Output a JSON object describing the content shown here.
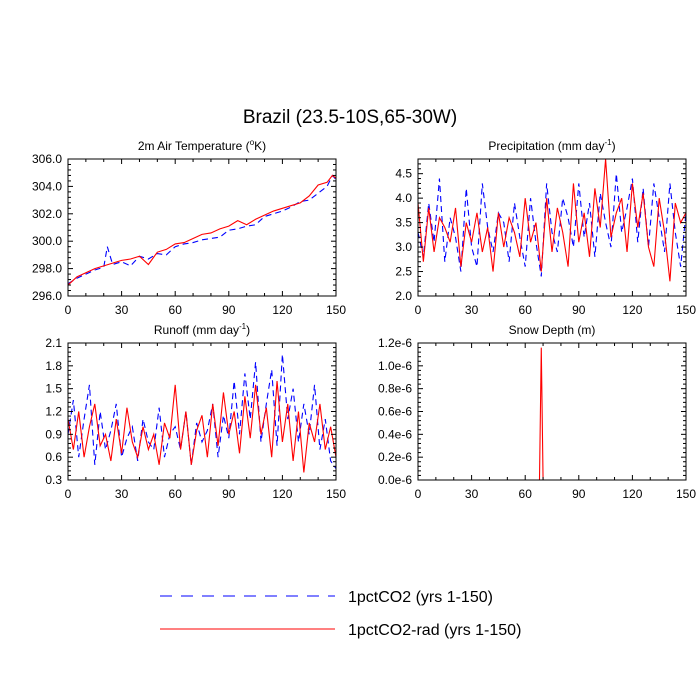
{
  "figure": {
    "title": "Brazil (23.5-10S,65-30W)"
  },
  "legend": {
    "position": "bottom-center",
    "entries": [
      {
        "label": "1pctCO2 (yrs 1-150)",
        "color": "#0000ff",
        "style": "dashed"
      },
      {
        "label": "1pctCO2-rad (yrs 1-150)",
        "color": "#ff0000",
        "style": "solid"
      }
    ]
  },
  "chart_data": [
    {
      "type": "line",
      "title": "2m Air Temperature (°K)",
      "title_main": "2m Air Temperature (",
      "title_sup": "o",
      "title_tail": "K)",
      "xlim": [
        0,
        150
      ],
      "ylim": [
        296,
        306
      ],
      "xticks": [
        "0",
        "30",
        "60",
        "90",
        "120",
        "150"
      ],
      "yticks": [
        "296.0",
        "298.0",
        "300.0",
        "302.0",
        "304.0",
        "306.0"
      ],
      "series": [
        {
          "name": "1pctCO2 (yrs 1-150)",
          "color": "#0000ff",
          "dash": "6,4",
          "x": [
            0,
            5,
            10,
            15,
            20,
            22,
            25,
            30,
            35,
            40,
            45,
            50,
            55,
            60,
            65,
            70,
            75,
            80,
            85,
            90,
            95,
            100,
            105,
            110,
            115,
            120,
            125,
            130,
            135,
            140,
            145,
            148,
            150
          ],
          "y": [
            296.9,
            297.3,
            297.6,
            297.9,
            298.1,
            299.6,
            298.3,
            298.5,
            298.2,
            298.9,
            298.7,
            299.1,
            299.0,
            299.6,
            299.8,
            299.9,
            300.1,
            300.2,
            300.3,
            300.8,
            300.9,
            301.1,
            301.2,
            301.8,
            302.0,
            302.2,
            302.5,
            302.9,
            303.0,
            303.5,
            304.0,
            304.8,
            304.5
          ]
        },
        {
          "name": "1pctCO2-rad (yrs 1-150)",
          "color": "#ff0000",
          "dash": "",
          "x": [
            0,
            5,
            10,
            15,
            20,
            25,
            30,
            35,
            40,
            45,
            50,
            55,
            60,
            65,
            70,
            75,
            80,
            85,
            90,
            95,
            100,
            105,
            110,
            115,
            120,
            125,
            130,
            135,
            140,
            145,
            148,
            150
          ],
          "y": [
            296.8,
            297.4,
            297.7,
            298.0,
            298.2,
            298.4,
            298.6,
            298.7,
            298.9,
            298.3,
            299.2,
            299.4,
            299.8,
            299.9,
            300.2,
            300.5,
            300.6,
            300.9,
            301.1,
            301.5,
            301.2,
            301.6,
            301.9,
            302.2,
            302.4,
            302.6,
            302.8,
            303.3,
            304.1,
            304.3,
            304.8,
            304.6
          ]
        }
      ]
    },
    {
      "type": "line",
      "title": "Precipitation (mm day-1)",
      "title_main": "Precipitation (mm day",
      "title_sup": "-1",
      "title_tail": ")",
      "xlim": [
        0,
        150
      ],
      "ylim": [
        2.0,
        4.8
      ],
      "xticks": [
        "0",
        "30",
        "60",
        "90",
        "120",
        "150"
      ],
      "yticks": [
        "2.0",
        "2.5",
        "3.0",
        "3.5",
        "4.0",
        "4.5"
      ],
      "series": [
        {
          "name": "1pctCO2 (yrs 1-150)",
          "color": "#0000ff",
          "dash": "6,4",
          "x": [
            0,
            3,
            6,
            9,
            12,
            15,
            18,
            21,
            24,
            27,
            30,
            33,
            36,
            39,
            42,
            45,
            48,
            51,
            54,
            57,
            60,
            63,
            66,
            69,
            72,
            75,
            78,
            81,
            84,
            87,
            90,
            93,
            96,
            99,
            102,
            105,
            108,
            111,
            114,
            117,
            120,
            123,
            126,
            129,
            132,
            135,
            138,
            141,
            144,
            147,
            150
          ],
          "y": [
            3.3,
            2.8,
            3.9,
            3.1,
            4.4,
            2.7,
            3.6,
            3.2,
            2.5,
            4.2,
            3.0,
            2.6,
            4.3,
            3.4,
            2.9,
            3.7,
            3.5,
            2.7,
            3.9,
            3.2,
            2.6,
            4.0,
            3.1,
            2.4,
            4.3,
            3.3,
            2.9,
            4.0,
            3.6,
            3.0,
            4.3,
            3.2,
            3.9,
            2.8,
            4.1,
            3.5,
            3.0,
            4.5,
            3.3,
            3.8,
            4.4,
            3.1,
            4.2,
            3.0,
            4.3,
            3.6,
            2.9,
            4.3,
            3.3,
            2.6,
            3.7
          ]
        },
        {
          "name": "1pctCO2-rad (yrs 1-150)",
          "color": "#ff0000",
          "dash": "",
          "x": [
            0,
            3,
            6,
            9,
            12,
            15,
            18,
            21,
            24,
            27,
            30,
            33,
            36,
            39,
            42,
            45,
            48,
            51,
            54,
            57,
            60,
            63,
            66,
            69,
            72,
            75,
            78,
            81,
            84,
            87,
            90,
            93,
            96,
            99,
            102,
            105,
            108,
            111,
            114,
            117,
            120,
            123,
            126,
            129,
            132,
            135,
            138,
            141,
            144,
            147,
            150
          ],
          "y": [
            3.9,
            2.7,
            3.8,
            2.9,
            3.6,
            3.4,
            3.1,
            3.8,
            2.6,
            3.5,
            3.1,
            3.7,
            2.9,
            3.4,
            2.5,
            3.7,
            3.0,
            3.6,
            3.3,
            2.8,
            4.0,
            3.1,
            3.5,
            2.5,
            4.0,
            2.9,
            3.8,
            3.3,
            2.6,
            4.3,
            3.1,
            3.7,
            2.8,
            4.2,
            3.4,
            4.8,
            3.2,
            3.7,
            4.0,
            2.9,
            4.3,
            3.4,
            4.1,
            3.0,
            2.6,
            4.0,
            3.3,
            2.3,
            3.9,
            3.5,
            3.7
          ]
        }
      ]
    },
    {
      "type": "line",
      "title": "Runoff (mm day-1)",
      "title_main": "Runoff (mm day",
      "title_sup": "-1",
      "title_tail": ")",
      "xlim": [
        0,
        150
      ],
      "ylim": [
        0.3,
        2.1
      ],
      "xticks": [
        "0",
        "30",
        "60",
        "90",
        "120",
        "150"
      ],
      "yticks": [
        "0.3",
        "0.6",
        "0.9",
        "1.2",
        "1.5",
        "1.8",
        "2.1"
      ],
      "series": [
        {
          "name": "1pctCO2 (yrs 1-150)",
          "color": "#0000ff",
          "dash": "6,4",
          "x": [
            0,
            3,
            6,
            9,
            12,
            15,
            18,
            21,
            24,
            27,
            30,
            33,
            36,
            39,
            42,
            45,
            48,
            51,
            54,
            57,
            60,
            63,
            66,
            69,
            72,
            75,
            78,
            81,
            84,
            87,
            90,
            93,
            96,
            99,
            102,
            105,
            108,
            111,
            114,
            117,
            120,
            123,
            126,
            129,
            132,
            135,
            138,
            141,
            144,
            147,
            150
          ],
          "y": [
            0.9,
            1.35,
            0.6,
            1.1,
            1.55,
            0.5,
            1.2,
            0.7,
            0.95,
            1.3,
            0.6,
            0.85,
            1.0,
            0.55,
            1.1,
            0.8,
            0.7,
            1.25,
            0.6,
            0.9,
            1.0,
            0.7,
            1.2,
            0.5,
            1.05,
            0.8,
            0.95,
            1.3,
            0.6,
            1.15,
            0.85,
            1.6,
            0.9,
            1.7,
            1.1,
            1.85,
            0.8,
            1.3,
            1.75,
            0.75,
            1.95,
            1.1,
            1.5,
            0.8,
            1.3,
            0.9,
            1.55,
            0.7,
            1.1,
            0.55,
            0.45
          ]
        },
        {
          "name": "1pctCO2-rad (yrs 1-150)",
          "color": "#ff0000",
          "dash": "",
          "x": [
            0,
            3,
            6,
            9,
            12,
            15,
            18,
            21,
            24,
            27,
            30,
            33,
            36,
            39,
            42,
            45,
            48,
            51,
            54,
            57,
            60,
            63,
            66,
            69,
            72,
            75,
            78,
            81,
            84,
            87,
            90,
            93,
            96,
            99,
            102,
            105,
            108,
            111,
            114,
            117,
            120,
            123,
            126,
            129,
            132,
            135,
            138,
            141,
            144,
            147,
            150
          ],
          "y": [
            1.1,
            0.7,
            1.2,
            0.6,
            1.0,
            1.3,
            0.75,
            0.9,
            0.55,
            1.1,
            0.65,
            1.25,
            0.8,
            0.6,
            1.0,
            0.7,
            0.9,
            0.5,
            1.05,
            0.85,
            1.55,
            0.7,
            1.2,
            0.5,
            0.95,
            1.15,
            0.6,
            1.3,
            0.75,
            1.45,
            0.9,
            1.2,
            0.65,
            1.4,
            0.85,
            1.55,
            0.9,
            1.25,
            0.6,
            1.6,
            0.8,
            1.3,
            0.55,
            1.2,
            0.4,
            1.05,
            0.8,
            1.3,
            0.7,
            1.0,
            0.6
          ]
        }
      ]
    },
    {
      "type": "line",
      "title": "Snow Depth (m)",
      "title_main": "Snow Depth (m)",
      "title_sup": "",
      "title_tail": "",
      "xlim": [
        0,
        150
      ],
      "ylim": [
        0,
        1.2e-06
      ],
      "xticks": [
        "0",
        "30",
        "60",
        "90",
        "120",
        "150"
      ],
      "yticks": [
        "0.0e-6",
        "0.2e-6",
        "0.4e-6",
        "0.6e-6",
        "0.8e-6",
        "1.0e-6",
        "1.2e-6"
      ],
      "series": [
        {
          "name": "1pctCO2 (yrs 1-150)",
          "color": "#0000ff",
          "dash": "6,4",
          "x": [
            0,
            150
          ],
          "y": [
            0,
            0
          ]
        },
        {
          "name": "1pctCO2-rad (yrs 1-150)",
          "color": "#ff0000",
          "dash": "",
          "x": [
            0,
            68,
            69,
            70,
            150
          ],
          "y": [
            0,
            0,
            1.16e-06,
            0,
            0
          ]
        }
      ]
    }
  ]
}
